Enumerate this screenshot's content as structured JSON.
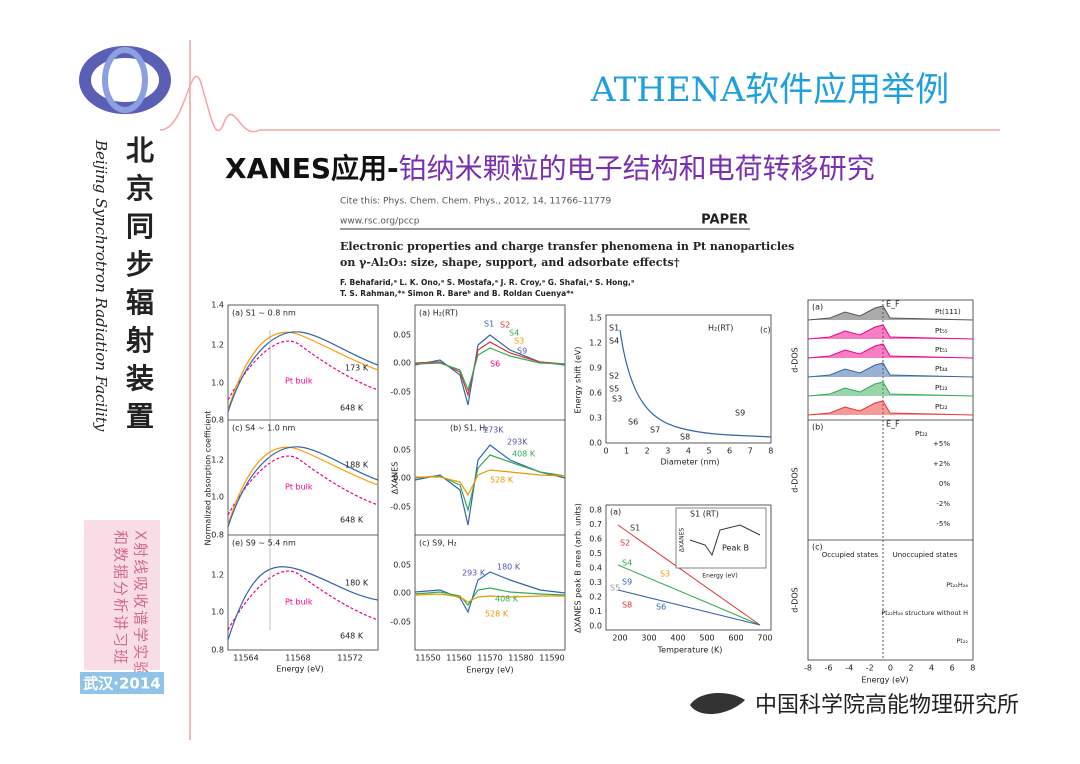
{
  "header": {
    "title": "ATHENA软件应用举例",
    "subtitle_lead": "XANES应用-",
    "subtitle_rest": "铂纳米颗粒的电子结构和电荷转移研究"
  },
  "sidebar": {
    "org": [
      "北",
      "京",
      "同",
      "步",
      "辐",
      "射",
      "装",
      "置"
    ],
    "org_en": "Beijing Synchrotron Radiation Facility",
    "course": [
      "X射线吸收谱学实验",
      "和数据分析讲习班"
    ],
    "event": "武汉·2014"
  },
  "paper": {
    "cite": "Cite this: Phys. Chem. Chem. Phys., 2012, 14, 11766–11779",
    "url": "www.rsc.org/pccp",
    "kind": "PAPER",
    "title": [
      "Electronic properties and charge transfer phenomena in Pt nanoparticles",
      "on γ-Al₂O₃: size, shape, support, and adsorbate effects†"
    ],
    "authors": [
      "F. Behafarid,ᵃ L. K. Ono,ᵃ S. Mostafa,ᵃ J. R. Croy,ᵃ G. Shafai,ᵃ S. Hong,ᵃ",
      "T. S. Rahman,*ᵃ Simon R. Bareᵇ and B. Roldan Cuenya*ᵃ"
    ]
  },
  "fig_a": {
    "titles": [
      "(a) S1  ~ 0.8 nm",
      "(c) S4  ~ 1.0 nm",
      "(e) S9  ~ 5.4 nm"
    ],
    "temps": [
      "173 K",
      "648 K",
      "188 K",
      "648 K",
      "180 K",
      "648 K"
    ],
    "bulk": "Pt bulk",
    "yticks": [
      "1.4",
      "1.2",
      "1.0",
      "0.8"
    ],
    "xticks": [
      "11564",
      "11568",
      "11572"
    ],
    "ylabel": "Normalized absorption coefficient",
    "xlabel": "Energy (eV)"
  },
  "fig_b": {
    "titles": [
      "(a)  H₂(RT)",
      "(b) S1, H₂",
      "(c) S9, H₂"
    ],
    "series": [
      "S1",
      "S2",
      "S4",
      "S3",
      "S9",
      "S6"
    ],
    "temps": [
      "173K",
      "293K",
      "408 K",
      "528 K",
      "180 K",
      "293 K",
      "408 K",
      "528 K"
    ],
    "yticks": [
      "0.05",
      "0.00",
      "-0.05"
    ],
    "xticks": [
      "11550",
      "11560",
      "11570",
      "11580",
      "11590"
    ],
    "ylabel": "ΔXANES",
    "xlabel": "Energy (eV)"
  },
  "fig_c": {
    "title": "H₂(RT)",
    "tag": "(c)",
    "points": [
      "S1",
      "S4",
      "S2",
      "S5",
      "S3",
      "S6",
      "S7",
      "S8",
      "S9"
    ],
    "yticks": [
      "1.5",
      "1.2",
      "0.9",
      "0.6",
      "0.3",
      "0.0"
    ],
    "xticks": [
      "0",
      "1",
      "2",
      "3",
      "4",
      "5",
      "6",
      "7",
      "8"
    ],
    "ylabel": "Energy shift (eV)",
    "xlabel": "Diameter (nm)"
  },
  "fig_d": {
    "tag": "(a)",
    "series": [
      "S1",
      "S2",
      "S4",
      "S3",
      "S9",
      "S5",
      "S8",
      "S6"
    ],
    "inset_title": "S1 (RT)",
    "inset_peak": "Peak B",
    "inset_ylabel": "ΔXANES",
    "inset_xlabel": "Energy (eV)",
    "yticks": [
      "0.8",
      "0.7",
      "0.6",
      "0.5",
      "0.4",
      "0.3",
      "0.2",
      "0.1",
      "0.0"
    ],
    "xticks": [
      "200",
      "300",
      "400",
      "500",
      "600",
      "700"
    ],
    "ylabel": "ΔXANES peak B area (arb. units)",
    "xlabel": "Temperature (K)"
  },
  "fig_e": {
    "tags": [
      "(a)",
      "(b)",
      "(c)"
    ],
    "ef": "E_F",
    "labels_a": [
      "Pt(111)",
      "Pt₅₅",
      "Pt₅₁",
      "Pt₄₄",
      "Pt₂₂",
      "Pt₂₂"
    ],
    "label_b": "Pt₂₂",
    "pct": [
      "+5%",
      "+2%",
      "0%",
      "-2%",
      "-5%"
    ],
    "occupied": "Occupied states",
    "unoccupied": "Unoccupied states",
    "labels_c": [
      "Pt₂₂H₂₆",
      "Pt₂₂H₂₆ structure without H",
      "Pt₂₂"
    ],
    "ylabel": "d-DOS",
    "xticks": [
      "-8",
      "-6",
      "-4",
      "-2",
      "0",
      "2",
      "4",
      "6",
      "8"
    ],
    "xlabel": "Energy (eV)"
  },
  "footer": {
    "institute": "中国科学院高能物理研究所"
  }
}
